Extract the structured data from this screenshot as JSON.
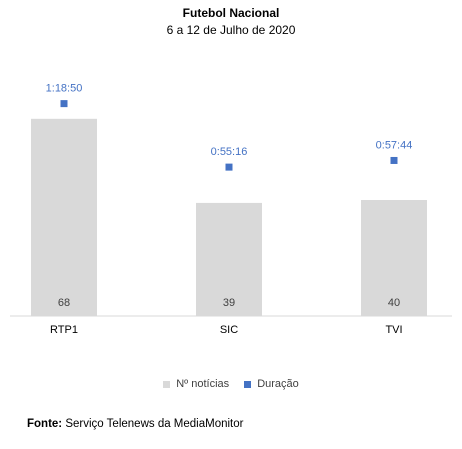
{
  "chart_data": {
    "type": "bar",
    "title": "Futebol Nacional",
    "subtitle": "6 a 12 de Julho de 2020",
    "categories": [
      "RTP1",
      "SIC",
      "TVI"
    ],
    "series": [
      {
        "name": "Nº notícias",
        "type": "bar",
        "values": [
          68,
          39,
          40
        ],
        "labels": [
          "68",
          "39",
          "40"
        ],
        "color": "#d9d9d9"
      },
      {
        "name": "Duração",
        "type": "scatter",
        "values_seconds": [
          4730,
          3316,
          3464
        ],
        "labels": [
          "1:18:50",
          "0:55:16",
          "0:57:44"
        ],
        "color": "#4472c4"
      }
    ],
    "legend_position": "bottom",
    "grid": false
  },
  "source": {
    "label": "Fonte:",
    "text": "Serviço Telenews da MediaMonitor"
  },
  "colors": {
    "bar": "#d9d9d9",
    "marker": "#4472c4",
    "marker_label": "#4472c4"
  }
}
